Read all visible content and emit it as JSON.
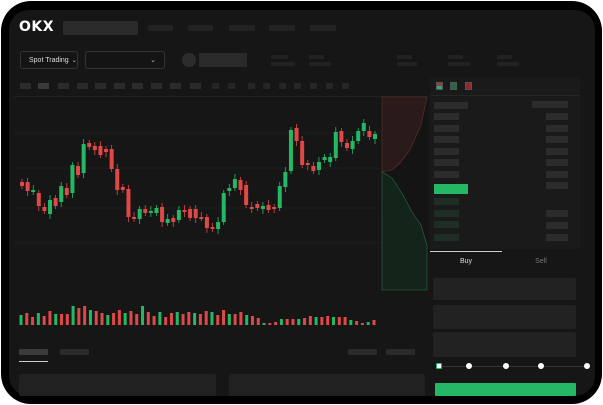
{
  "header": {
    "logo": "OKX"
  },
  "market": {
    "mode_selector": "Spot Trading"
  },
  "trade_panel": {
    "tabs": [
      {
        "label": "Buy",
        "active": true
      },
      {
        "label": "Sell",
        "active": false
      }
    ],
    "slider_percent": 0
  },
  "colors": {
    "up": "#25b864",
    "down": "#e04848",
    "bg": "#161616",
    "accent": "#25b864"
  }
}
